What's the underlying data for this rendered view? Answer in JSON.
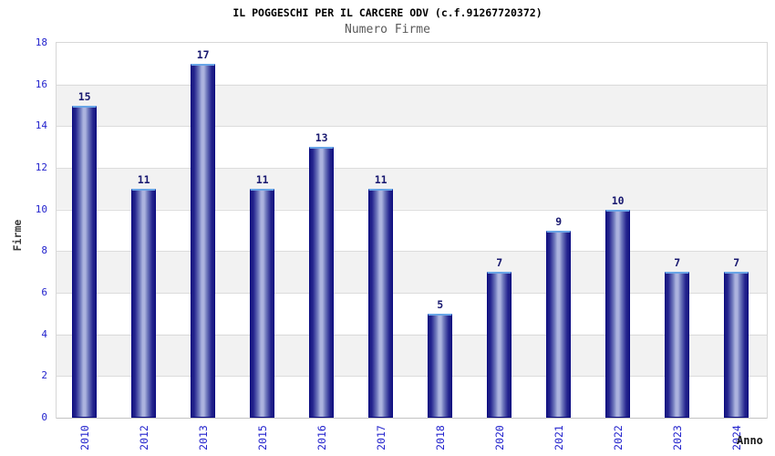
{
  "header": {
    "title": "IL POGGESCHI PER IL CARCERE ODV (c.f.91267720372)",
    "subtitle": "Numero Firme"
  },
  "colors": {
    "tick_label": "#2323cd",
    "value_label": "#191970",
    "bar_edge": "#0a0a82",
    "bar_dark": "#181880",
    "bar_light": "#abb2de",
    "bar_top_border": "#68a4e6",
    "band_gray": "#f2f2f2",
    "gridline": "#dcdcdc",
    "subtitle": "#5a5a5a"
  },
  "chart_data": {
    "type": "bar",
    "title": "IL POGGESCHI PER IL CARCERE ODV (c.f.91267720372)",
    "subtitle": "Numero Firme",
    "categories": [
      "2010",
      "2012",
      "2013",
      "2015",
      "2016",
      "2017",
      "2018",
      "2020",
      "2021",
      "2022",
      "2023",
      "2024"
    ],
    "values": [
      15,
      11,
      17,
      11,
      13,
      11,
      5,
      7,
      9,
      10,
      7,
      7
    ],
    "xlabel": "Anno",
    "ylabel": "Firme",
    "ylim": [
      0,
      18
    ],
    "yticks": [
      0,
      2,
      4,
      6,
      8,
      10,
      12,
      14,
      16,
      18
    ],
    "grid": true,
    "legend_position": "none",
    "value_labels": true,
    "x_tick_rotation": -90,
    "band_fill": "alternating gray/white horizontal bands every 2 units"
  }
}
